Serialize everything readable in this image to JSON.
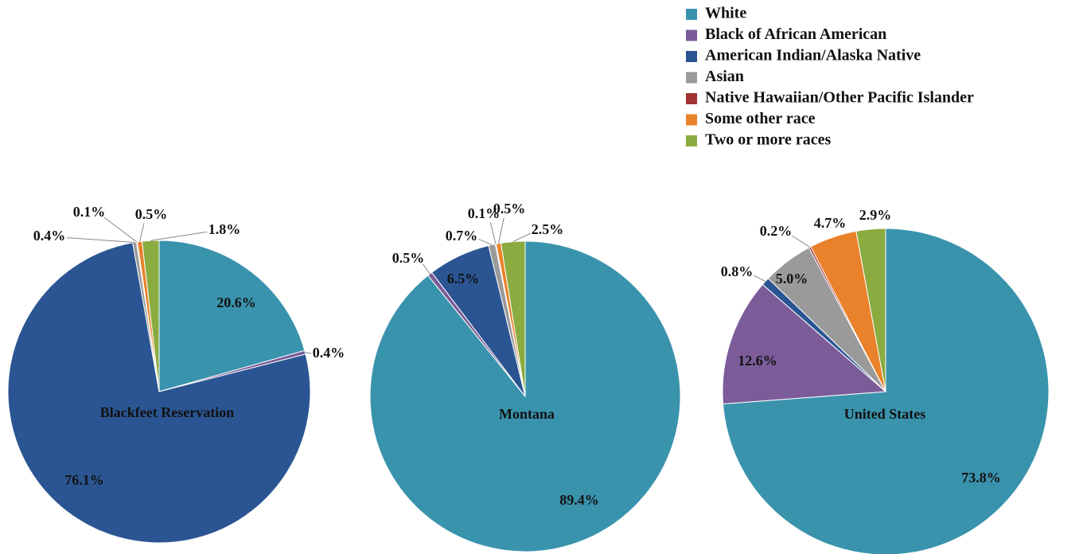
{
  "chart_data": [
    {
      "type": "pie",
      "title": "Blackfeet Reservation",
      "categories": [
        "White",
        "Black of African American",
        "American Indian/Alaska Native",
        "Asian",
        "Native Hawaiian/Other Pacific Islander",
        "Some other race",
        "Two or more races"
      ],
      "values": [
        20.6,
        0.4,
        76.1,
        0.4,
        0.1,
        0.5,
        1.8
      ],
      "value_labels": [
        "20.6%",
        "0.4%",
        "76.1%",
        "0.4%",
        "0.1%",
        "0.5%",
        "1.8%"
      ],
      "colors": [
        "#3a93ad",
        "#7b5c99",
        "#2a5592",
        "#9a9a9a",
        "#a33232",
        "#e9822b",
        "#8aab3f"
      ]
    },
    {
      "type": "pie",
      "title": "Montana",
      "categories": [
        "White",
        "Black of African American",
        "American Indian/Alaska Native",
        "Asian",
        "Native Hawaiian/Other Pacific Islander",
        "Some other race",
        "Two or more races"
      ],
      "values": [
        89.4,
        0.5,
        6.5,
        0.7,
        0.1,
        0.5,
        2.5
      ],
      "value_labels": [
        "89.4%",
        "0.5%",
        "6.5%",
        "0.7%",
        "0.1%",
        "0.5%",
        "2.5%"
      ],
      "colors": [
        "#3a93ad",
        "#7b5c99",
        "#2a5592",
        "#9a9a9a",
        "#a33232",
        "#e9822b",
        "#8aab3f"
      ]
    },
    {
      "type": "pie",
      "title": "United States",
      "categories": [
        "White",
        "Black of African American",
        "American Indian/Alaska Native",
        "Asian",
        "Native Hawaiian/Other Pacific Islander",
        "Some other race",
        "Two or more races"
      ],
      "values": [
        73.8,
        12.6,
        0.8,
        5.0,
        0.2,
        4.7,
        2.9
      ],
      "value_labels": [
        "73.8%",
        "12.6%",
        "0.8%",
        "5.0%",
        "0.2%",
        "4.7%",
        "2.9%"
      ],
      "colors": [
        "#3a93ad",
        "#7b5c99",
        "#2a5592",
        "#9a9a9a",
        "#a33232",
        "#e9822b",
        "#8aab3f"
      ]
    }
  ]
}
